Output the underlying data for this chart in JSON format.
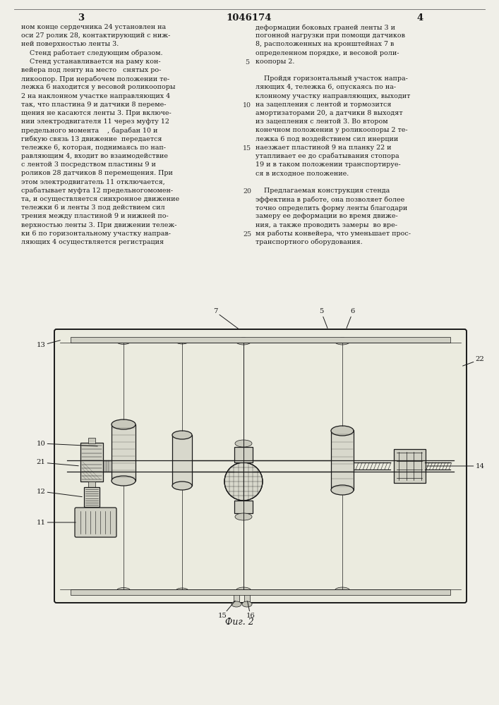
{
  "page_number_left": "3",
  "patent_number": "1046174",
  "page_number_right": "4",
  "background_color": "#f0efe8",
  "text_color": "#1a1a1a",
  "line_number_color": "#333333",
  "col1_text": [
    "ном конце сердечника 24 установлен на",
    "оси 27 ролик 28, контактирующий с ниж-",
    "ней поверхностью ленты 3.",
    "    Стенд работает следующим образом.",
    "    Стенд устанавливается на раму кон-",
    "вейера под ленту на место   снятых ро-",
    "ликоопор. При нерабочем положении те-",
    "лежка 6 находится у весовой роликоопоры",
    "2 на наклонном участке направляющих 4",
    "так, что пластина 9 и датчики 8 переме-",
    "щения не касаются ленты 3. При включе-",
    "нии электродвигателя 11 через муфту 12",
    "предельного момента    , барабан 10 и",
    "гибкую связь 13 движение  передается",
    "тележке 6, которая, поднимаясь по нап-",
    "равляющим 4, входит во взаимодействие",
    "с лентой 3 посредством пластины 9 и",
    "роликов 28 датчиков 8 перемещения. При",
    "этом электродвигатель 11 отключается,",
    "срабатывает муфта 12 предельногомомен-",
    "та, и осуществляется синхронное движение",
    "тележки 6 и ленты 3 под действием сил",
    "трения между пластиной 9 и нижней по-",
    "верхностью ленты 3. При движении тележ-",
    "ки 6 по горизонтальному участку направ-",
    "ляющих 4 осуществляется регистрация"
  ],
  "col2_text": [
    "деформации боковых граней ленты 3 и",
    "погонной нагрузки при помощи датчиков",
    "8, расположенных на кронштейнах 7 в",
    "определенном порядке, и весовой роли-",
    "коопоры 2.",
    "",
    "    Пройдя горизонтальный участок напра-",
    "ляющих 4, тележка 6, опускаясь по на-",
    "клонному участку направляющих, выходит",
    "на зацепления с лентой и тормозится",
    "амортизаторами 20, а датчики 8 выходят",
    "из зацепления с лентой 3. Во втором",
    "конечном положении у роликоопоры 2 те-",
    "лежка 6 под воздействием сил инерции",
    "наезжает пластиной 9 на планку 22 и",
    "утапливает ее до срабатывания стопора",
    "19 и в таком положении транспортируе-",
    "ся в исходное положение.",
    "",
    "    Предлагаемая конструкция стенда",
    "эффектина в работе, она позволяет более",
    "точно определить форму ленты благодари",
    "замеру ее деформации во время движе-",
    "ния, а также проводить замеры  во вре-",
    "мя работы конвейера, что уменьшает прос-",
    "транспортного оборудования."
  ],
  "line_numbers": [
    {
      "num": "5",
      "row": 4
    },
    {
      "num": "10",
      "row": 9
    },
    {
      "num": "15",
      "row": 14
    },
    {
      "num": "20",
      "row": 19
    },
    {
      "num": "25",
      "row": 24
    }
  ],
  "fig_caption": "Фиг. 2"
}
